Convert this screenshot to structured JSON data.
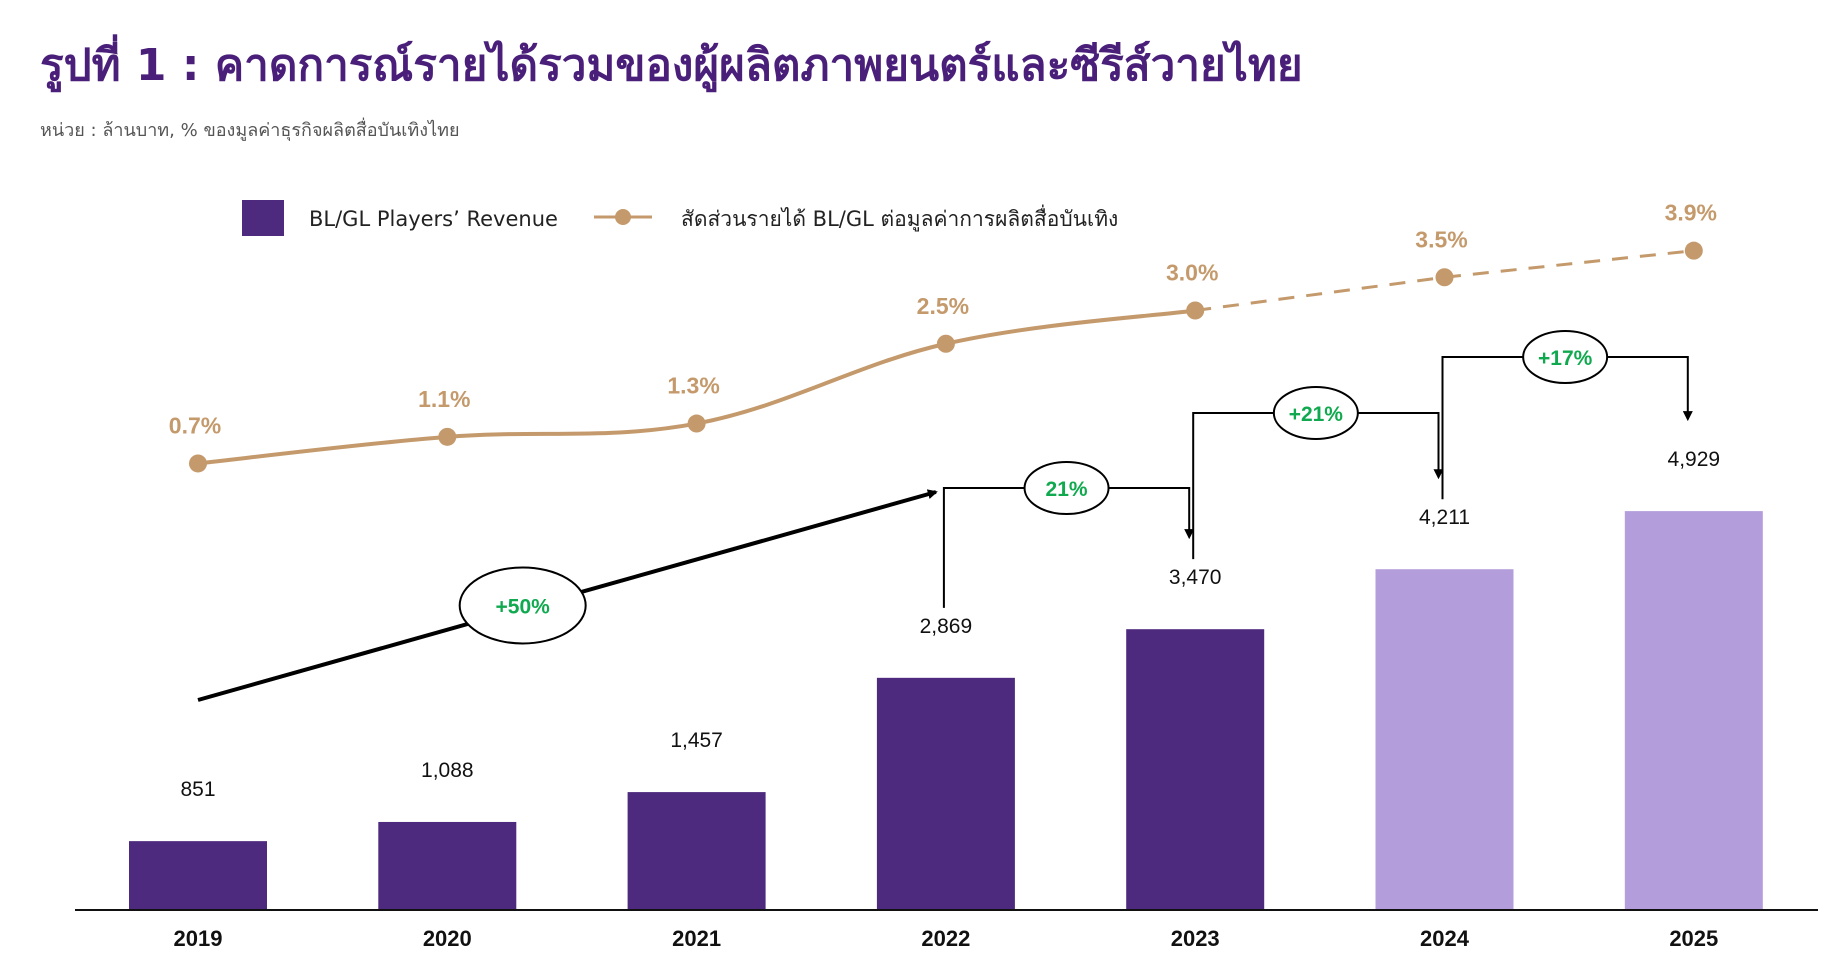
{
  "title": "รูปที่ 1 : คาดการณ์รายได้รวมของผู้ผลิตภาพยนตร์และซีรีส์วายไทย",
  "subtitle": "หน่วย : ล้านบาท, % ของมูลค่าธุรกิจผลิตสื่อบันเทิงไทย",
  "colors": {
    "bar_actual": "#4e2a7e",
    "bar_forecast": "#b39ddb",
    "line": "#c49a6c",
    "growth_text": "#11a94f",
    "title": "#4a1f7a"
  },
  "legend": {
    "bar_label": "BL/GL Players’ Revenue",
    "line_label": "สัดส่วนรายได้ BL/GL ต่อมูลค่าการผลิตสื่อบันเทิง"
  },
  "chart_data": {
    "type": "bar",
    "categories": [
      "2019",
      "2020",
      "2021",
      "2022",
      "2023",
      "2024",
      "2025"
    ],
    "series": [
      {
        "name": "BL/GL Players’ Revenue",
        "type": "bar",
        "values": [
          851,
          1088,
          1457,
          2869,
          3470,
          4211,
          4929
        ],
        "labels": [
          "851",
          "1,088",
          "1,457",
          "2,869",
          "3,470",
          "4,211",
          "4,929"
        ],
        "forecast_from": "2024"
      },
      {
        "name": "สัดส่วนรายได้ BL/GL ต่อมูลค่าการผลิตสื่อบันเทิง",
        "type": "line",
        "values": [
          0.7,
          1.1,
          1.3,
          2.5,
          3.0,
          3.5,
          3.9
        ],
        "labels": [
          "0.7%",
          "1.1%",
          "1.3%",
          "2.5%",
          "3.0%",
          "3.5%",
          "3.9%"
        ],
        "dashed_from": "2023"
      }
    ],
    "annotations": [
      {
        "from": "2019",
        "to": "2022",
        "label": "+50%",
        "kind": "arrow"
      },
      {
        "from": "2022",
        "to": "2023",
        "label": "21%",
        "kind": "bracket"
      },
      {
        "from": "2023",
        "to": "2024",
        "label": "+21%",
        "kind": "bracket"
      },
      {
        "from": "2024",
        "to": "2025",
        "label": "+17%",
        "kind": "bracket"
      }
    ],
    "ylim_bar": [
      0,
      5500
    ],
    "ylim_line": [
      0,
      4.5
    ],
    "legend_position": "top-left",
    "grid": false
  }
}
